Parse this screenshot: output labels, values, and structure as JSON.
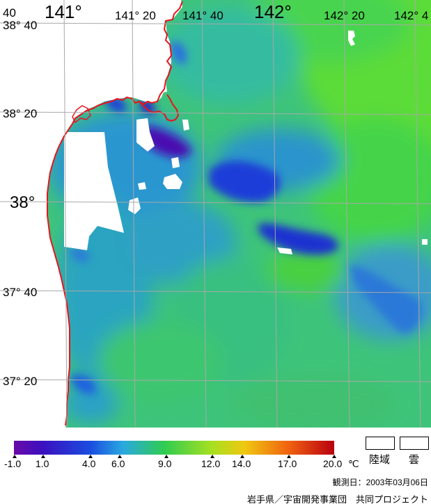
{
  "map": {
    "lon_labels": {
      "l140": "40",
      "l141": "141°",
      "l141_20": "141° 20",
      "l141_40": "141° 40",
      "l142": "142°",
      "l142_20": "142° 20",
      "l142_40": "142° 4"
    },
    "lat_labels": {
      "l38_40": "38° 40",
      "l38_20": "38° 20",
      "l38": "38°",
      "l37_40": "37° 40",
      "l37_20": "37° 20"
    },
    "colors": {
      "coast": "#e8141c",
      "land": "#ffffff",
      "grid": "#a0a0a0",
      "sea_base": "#3fcc6a"
    }
  },
  "legend": {
    "unit": "℃",
    "ticks": [
      "-1.0",
      "1.0",
      "4.0",
      "6.0",
      "9.0",
      "12.0",
      "14.0",
      "17.0",
      "20.0"
    ],
    "gradient": [
      "#6a0aa8",
      "#2a10c0",
      "#1a4ee0",
      "#2aa8e0",
      "#30cc50",
      "#a8e020",
      "#f0c810",
      "#f06010",
      "#c00010"
    ],
    "land_label": "陸域",
    "cloud_label": "雲"
  },
  "footer": {
    "observation_date": "観測日：2003年03月06日",
    "credit": "岩手県／宇宙開発事業団　共同プロジェクト"
  }
}
